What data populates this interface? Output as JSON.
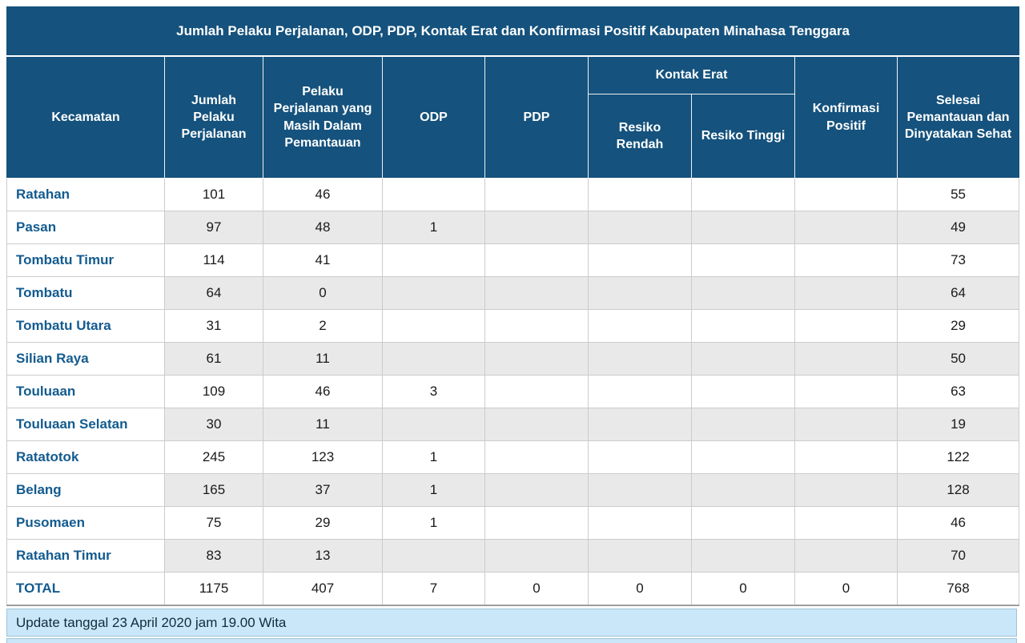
{
  "title": "Jumlah Pelaku Perjalanan, ODP, PDP, Kontak Erat dan Konfirmasi Positif Kabupaten Minahasa Tenggara",
  "header": {
    "kecamatan": "Kecamatan",
    "jumlah_pelaku_perjalanan": "Jumlah Pelaku Perjalanan",
    "pelaku_masih_pemantauan": "Pelaku Perjalanan yang Masih Dalam Pemantauan",
    "odp": "ODP",
    "pdp": "PDP",
    "kontak_erat": "Kontak Erat",
    "resiko_rendah": "Resiko Rendah",
    "resiko_tinggi": "Resiko Tinggi",
    "konfirmasi_positif": "Konfirmasi Positif",
    "selesai_pemantauan": "Selesai Pemantauan dan Dinyatakan Sehat"
  },
  "footer": {
    "update_text": "Update tanggal 23 April 2020 jam 19.00 Wita"
  },
  "colors": {
    "header_bg": "#15527d",
    "header_text": "#ffffff",
    "stripe_bg": "#e9e9e9",
    "kecamatan_text": "#135b8f",
    "footer_bg": "#c9e7f8",
    "body_text": "#1a1a1a"
  },
  "chart_data": {
    "type": "table",
    "title": "Jumlah Pelaku Perjalanan, ODP, PDP, Kontak Erat dan Konfirmasi Positif Kabupaten Minahasa Tenggara",
    "column_groups": [
      {
        "label": "Kontak Erat",
        "spans": [
          "Resiko Rendah",
          "Resiko Tinggi"
        ]
      }
    ],
    "columns": [
      "Kecamatan",
      "Jumlah Pelaku Perjalanan",
      "Pelaku Perjalanan yang Masih Dalam Pemantauan",
      "ODP",
      "PDP",
      "Resiko Rendah",
      "Resiko Tinggi",
      "Konfirmasi Positif",
      "Selesai Pemantauan dan Dinyatakan Sehat"
    ],
    "rows": [
      [
        "Ratahan",
        "101",
        "46",
        "",
        "",
        "",
        "",
        "",
        "55"
      ],
      [
        "Pasan",
        "97",
        "48",
        "1",
        "",
        "",
        "",
        "",
        "49"
      ],
      [
        "Tombatu Timur",
        "114",
        "41",
        "",
        "",
        "",
        "",
        "",
        "73"
      ],
      [
        "Tombatu",
        "64",
        "0",
        "",
        "",
        "",
        "",
        "",
        "64"
      ],
      [
        "Tombatu Utara",
        "31",
        "2",
        "",
        "",
        "",
        "",
        "",
        "29"
      ],
      [
        "Silian Raya",
        "61",
        "11",
        "",
        "",
        "",
        "",
        "",
        "50"
      ],
      [
        "Touluaan",
        "109",
        "46",
        "3",
        "",
        "",
        "",
        "",
        "63"
      ],
      [
        "Touluaan Selatan",
        "30",
        "11",
        "",
        "",
        "",
        "",
        "",
        "19"
      ],
      [
        "Ratatotok",
        "245",
        "123",
        "1",
        "",
        "",
        "",
        "",
        "122"
      ],
      [
        "Belang",
        "165",
        "37",
        "1",
        "",
        "",
        "",
        "",
        "128"
      ],
      [
        "Pusomaen",
        "75",
        "29",
        "1",
        "",
        "",
        "",
        "",
        "46"
      ],
      [
        "Ratahan Timur",
        "83",
        "13",
        "",
        "",
        "",
        "",
        "",
        "70"
      ]
    ],
    "total_row": [
      "TOTAL",
      "1175",
      "407",
      "7",
      "0",
      "0",
      "0",
      "0",
      "768"
    ]
  }
}
